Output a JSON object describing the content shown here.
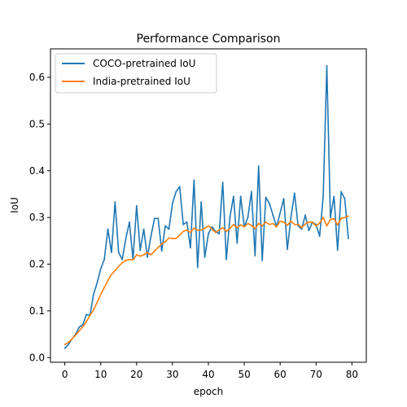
{
  "chart_data": {
    "type": "line",
    "title": "Performance Comparison",
    "xlabel": "epoch",
    "ylabel": "IoU",
    "xlim": [
      -4,
      84
    ],
    "ylim": [
      -0.01,
      0.661
    ],
    "x_ticks": [
      0,
      10,
      20,
      30,
      40,
      50,
      60,
      70,
      80
    ],
    "y_ticks": [
      0.0,
      0.1,
      0.2,
      0.3,
      0.4,
      0.5,
      0.6
    ],
    "y_tick_format": 1,
    "grid": false,
    "legend_position": "top-left",
    "x": [
      0,
      1,
      2,
      3,
      4,
      5,
      6,
      7,
      8,
      9,
      10,
      11,
      12,
      13,
      14,
      15,
      16,
      17,
      18,
      19,
      20,
      21,
      22,
      23,
      24,
      25,
      26,
      27,
      28,
      29,
      30,
      31,
      32,
      33,
      34,
      35,
      36,
      37,
      38,
      39,
      40,
      41,
      42,
      43,
      44,
      45,
      46,
      47,
      48,
      49,
      50,
      51,
      52,
      53,
      54,
      55,
      56,
      57,
      58,
      59,
      60,
      61,
      62,
      63,
      64,
      65,
      66,
      67,
      68,
      69,
      70,
      71,
      72,
      73,
      74,
      75,
      76,
      77,
      78,
      79
    ],
    "series": [
      {
        "name": "COCO-pretrained IoU",
        "color": "#1f77b4",
        "values": [
          0.02,
          0.028,
          0.04,
          0.05,
          0.065,
          0.07,
          0.092,
          0.09,
          0.135,
          0.16,
          0.19,
          0.21,
          0.275,
          0.225,
          0.333,
          0.225,
          0.21,
          0.255,
          0.29,
          0.21,
          0.325,
          0.23,
          0.275,
          0.215,
          0.26,
          0.298,
          0.298,
          0.228,
          0.282,
          0.275,
          0.33,
          0.355,
          0.366,
          0.285,
          0.29,
          0.235,
          0.38,
          0.193,
          0.333,
          0.215,
          0.265,
          0.28,
          0.27,
          0.265,
          0.375,
          0.21,
          0.3,
          0.345,
          0.245,
          0.345,
          0.28,
          0.3,
          0.355,
          0.218,
          0.41,
          0.208,
          0.343,
          0.33,
          0.305,
          0.28,
          0.31,
          0.34,
          0.232,
          0.3,
          0.352,
          0.282,
          0.275,
          0.305,
          0.272,
          0.29,
          0.285,
          0.26,
          0.345,
          0.625,
          0.3,
          0.345,
          0.23,
          0.355,
          0.34,
          0.255
        ]
      },
      {
        "name": "India-pretrained IoU",
        "color": "#ff7f0e",
        "values": [
          0.028,
          0.032,
          0.04,
          0.048,
          0.057,
          0.066,
          0.077,
          0.09,
          0.102,
          0.118,
          0.135,
          0.15,
          0.165,
          0.178,
          0.186,
          0.195,
          0.203,
          0.208,
          0.21,
          0.209,
          0.22,
          0.217,
          0.22,
          0.225,
          0.22,
          0.228,
          0.236,
          0.243,
          0.248,
          0.256,
          0.255,
          0.255,
          0.262,
          0.27,
          0.273,
          0.268,
          0.277,
          0.273,
          0.273,
          0.277,
          0.282,
          0.275,
          0.268,
          0.273,
          0.278,
          0.27,
          0.276,
          0.285,
          0.278,
          0.284,
          0.28,
          0.287,
          0.283,
          0.276,
          0.287,
          0.282,
          0.29,
          0.285,
          0.287,
          0.28,
          0.292,
          0.29,
          0.283,
          0.292,
          0.285,
          0.285,
          0.278,
          0.286,
          0.29,
          0.29,
          0.282,
          0.288,
          0.3,
          0.282,
          0.296,
          0.297,
          0.284,
          0.298,
          0.3,
          0.303
        ]
      }
    ]
  }
}
